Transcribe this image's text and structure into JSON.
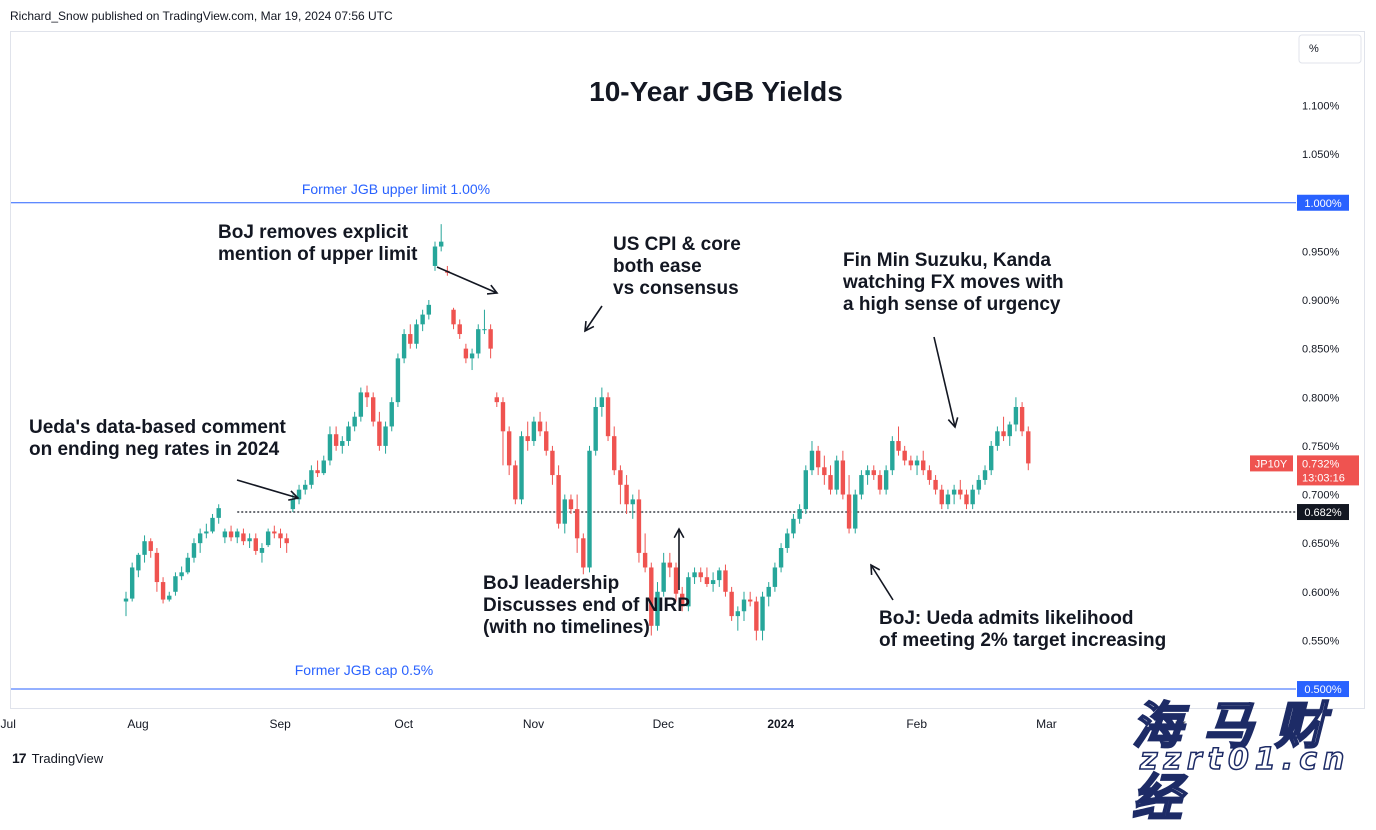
{
  "header": {
    "publisher_line": "Richard_Snow published on TradingView.com, Mar 19, 2024 07:56 UTC"
  },
  "footer": {
    "logo_text": "TradingView",
    "logo_mark": "17"
  },
  "watermark": {
    "cn_text": "海 马 财 经",
    "url_text": "zzrt01.cn"
  },
  "colors": {
    "up": "#26a69a",
    "down": "#ef5350",
    "level_line": "#2962ff",
    "label_blue": "#2962ff",
    "text": "#131722"
  },
  "chart_data": {
    "type": "candlestick",
    "title": "10-Year JGB Yields",
    "symbol": "JP10Y",
    "last_value_label": "0.732%",
    "countdown_label": "13:03:16",
    "current_line_label": "0.682%",
    "y_unit": "%",
    "ylim": [
      0.462,
      1.155
    ],
    "y_ticks": [
      {
        "v": 1.1,
        "label": "1.100%"
      },
      {
        "v": 1.05,
        "label": "1.050%"
      },
      {
        "v": 1.0,
        "label": "1.000%"
      },
      {
        "v": 0.95,
        "label": "0.950%"
      },
      {
        "v": 0.9,
        "label": "0.900%"
      },
      {
        "v": 0.85,
        "label": "0.850%"
      },
      {
        "v": 0.8,
        "label": "0.800%"
      },
      {
        "v": 0.75,
        "label": "0.750%"
      },
      {
        "v": 0.7,
        "label": "0.700%"
      },
      {
        "v": 0.65,
        "label": "0.650%"
      },
      {
        "v": 0.6,
        "label": "0.600%"
      },
      {
        "v": 0.55,
        "label": "0.550%"
      },
      {
        "v": 0.5,
        "label": "0.500%"
      }
    ],
    "x_ticks": [
      {
        "label": "Jul",
        "i": -21
      },
      {
        "label": "Aug",
        "i": 0
      },
      {
        "label": "Sep",
        "i": 23
      },
      {
        "label": "Oct",
        "i": 43
      },
      {
        "label": "Nov",
        "i": 64
      },
      {
        "label": "Dec",
        "i": 85
      },
      {
        "label": "2024",
        "i": 104,
        "bold": true
      },
      {
        "label": "Feb",
        "i": 126
      },
      {
        "label": "Mar",
        "i": 147
      },
      {
        "label": "Apr",
        "i": 168
      }
    ],
    "x_start_date": "2023-07-31",
    "levels": [
      {
        "value": 1.0,
        "label": "Former JGB upper limit 1.00%",
        "axis_label": "1.000%"
      },
      {
        "value": 0.5,
        "label": "Former JGB cap 0.5%",
        "axis_label": "0.500%"
      }
    ],
    "dotted_level": {
      "value": 0.682,
      "from_index": 18
    },
    "candles": [
      [
        0.59,
        0.6,
        0.575,
        0.593
      ],
      [
        0.593,
        0.63,
        0.59,
        0.625
      ],
      [
        0.622,
        0.64,
        0.615,
        0.638
      ],
      [
        0.638,
        0.658,
        0.63,
        0.652
      ],
      [
        0.652,
        0.655,
        0.635,
        0.642
      ],
      [
        0.64,
        0.645,
        0.6,
        0.61
      ],
      [
        0.61,
        0.615,
        0.588,
        0.592
      ],
      [
        0.592,
        0.6,
        0.59,
        0.596
      ],
      [
        0.6,
        0.62,
        0.596,
        0.616
      ],
      [
        0.616,
        0.626,
        0.612,
        0.62
      ],
      [
        0.62,
        0.64,
        0.618,
        0.635
      ],
      [
        0.635,
        0.655,
        0.63,
        0.65
      ],
      [
        0.65,
        0.665,
        0.64,
        0.66
      ],
      [
        0.66,
        0.67,
        0.655,
        0.662
      ],
      [
        0.662,
        0.68,
        0.66,
        0.676
      ],
      [
        0.676,
        0.69,
        0.67,
        0.686
      ],
      [
        0.656,
        0.665,
        0.65,
        0.662
      ],
      [
        0.662,
        0.668,
        0.652,
        0.656
      ],
      [
        0.656,
        0.665,
        0.65,
        0.662
      ],
      [
        0.66,
        0.665,
        0.648,
        0.652
      ],
      [
        0.652,
        0.66,
        0.645,
        0.655
      ],
      [
        0.655,
        0.66,
        0.638,
        0.642
      ],
      [
        0.64,
        0.65,
        0.63,
        0.645
      ],
      [
        0.648,
        0.665,
        0.646,
        0.662
      ],
      [
        0.662,
        0.668,
        0.655,
        0.66
      ],
      [
        0.66,
        0.665,
        0.645,
        0.655
      ],
      [
        0.655,
        0.66,
        0.64,
        0.65
      ],
      [
        0.685,
        0.7,
        0.682,
        0.695
      ],
      [
        0.695,
        0.71,
        0.69,
        0.705
      ],
      [
        0.705,
        0.715,
        0.7,
        0.71
      ],
      [
        0.71,
        0.73,
        0.706,
        0.725
      ],
      [
        0.725,
        0.735,
        0.718,
        0.722
      ],
      [
        0.722,
        0.74,
        0.72,
        0.735
      ],
      [
        0.735,
        0.77,
        0.73,
        0.762
      ],
      [
        0.762,
        0.77,
        0.745,
        0.75
      ],
      [
        0.75,
        0.76,
        0.742,
        0.755
      ],
      [
        0.755,
        0.775,
        0.75,
        0.77
      ],
      [
        0.77,
        0.785,
        0.765,
        0.78
      ],
      [
        0.78,
        0.81,
        0.775,
        0.805
      ],
      [
        0.805,
        0.812,
        0.79,
        0.8
      ],
      [
        0.8,
        0.805,
        0.77,
        0.775
      ],
      [
        0.775,
        0.785,
        0.745,
        0.75
      ],
      [
        0.75,
        0.775,
        0.742,
        0.77
      ],
      [
        0.77,
        0.8,
        0.765,
        0.795
      ],
      [
        0.795,
        0.845,
        0.79,
        0.84
      ],
      [
        0.84,
        0.87,
        0.835,
        0.865
      ],
      [
        0.865,
        0.875,
        0.85,
        0.855
      ],
      [
        0.855,
        0.88,
        0.85,
        0.875
      ],
      [
        0.875,
        0.89,
        0.868,
        0.885
      ],
      [
        0.885,
        0.9,
        0.88,
        0.895
      ],
      [
        0.935,
        0.96,
        0.93,
        0.955
      ],
      [
        0.955,
        0.978,
        0.95,
        0.96
      ],
      [
        0.93,
        0.935,
        0.925,
        0.928
      ],
      [
        0.89,
        0.892,
        0.87,
        0.875
      ],
      [
        0.875,
        0.88,
        0.86,
        0.865
      ],
      [
        0.85,
        0.855,
        0.835,
        0.84
      ],
      [
        0.84,
        0.85,
        0.828,
        0.845
      ],
      [
        0.845,
        0.875,
        0.84,
        0.87
      ],
      [
        0.87,
        0.89,
        0.865,
        0.87
      ],
      [
        0.87,
        0.875,
        0.84,
        0.85
      ],
      [
        0.8,
        0.805,
        0.79,
        0.795
      ],
      [
        0.795,
        0.8,
        0.73,
        0.765
      ],
      [
        0.765,
        0.77,
        0.72,
        0.73
      ],
      [
        0.73,
        0.735,
        0.69,
        0.695
      ],
      [
        0.695,
        0.765,
        0.69,
        0.76
      ],
      [
        0.76,
        0.775,
        0.745,
        0.755
      ],
      [
        0.755,
        0.78,
        0.75,
        0.775
      ],
      [
        0.775,
        0.785,
        0.76,
        0.765
      ],
      [
        0.765,
        0.775,
        0.74,
        0.745
      ],
      [
        0.745,
        0.75,
        0.71,
        0.72
      ],
      [
        0.72,
        0.73,
        0.665,
        0.67
      ],
      [
        0.67,
        0.7,
        0.66,
        0.695
      ],
      [
        0.695,
        0.7,
        0.68,
        0.685
      ],
      [
        0.685,
        0.7,
        0.64,
        0.655
      ],
      [
        0.655,
        0.66,
        0.618,
        0.625
      ],
      [
        0.625,
        0.75,
        0.62,
        0.745
      ],
      [
        0.745,
        0.8,
        0.74,
        0.79
      ],
      [
        0.79,
        0.81,
        0.78,
        0.8
      ],
      [
        0.8,
        0.805,
        0.755,
        0.76
      ],
      [
        0.76,
        0.77,
        0.72,
        0.725
      ],
      [
        0.725,
        0.73,
        0.69,
        0.71
      ],
      [
        0.71,
        0.72,
        0.68,
        0.69
      ],
      [
        0.69,
        0.7,
        0.675,
        0.695
      ],
      [
        0.695,
        0.705,
        0.63,
        0.64
      ],
      [
        0.64,
        0.66,
        0.62,
        0.625
      ],
      [
        0.625,
        0.63,
        0.555,
        0.565
      ],
      [
        0.565,
        0.61,
        0.56,
        0.6
      ],
      [
        0.6,
        0.64,
        0.595,
        0.63
      ],
      [
        0.63,
        0.64,
        0.615,
        0.625
      ],
      [
        0.625,
        0.63,
        0.59,
        0.598
      ],
      [
        0.598,
        0.605,
        0.58,
        0.585
      ],
      [
        0.585,
        0.62,
        0.58,
        0.615
      ],
      [
        0.615,
        0.625,
        0.608,
        0.62
      ],
      [
        0.62,
        0.625,
        0.61,
        0.615
      ],
      [
        0.615,
        0.625,
        0.605,
        0.608
      ],
      [
        0.608,
        0.62,
        0.6,
        0.612
      ],
      [
        0.612,
        0.625,
        0.605,
        0.622
      ],
      [
        0.622,
        0.628,
        0.595,
        0.6
      ],
      [
        0.6,
        0.605,
        0.57,
        0.575
      ],
      [
        0.575,
        0.585,
        0.56,
        0.58
      ],
      [
        0.58,
        0.6,
        0.57,
        0.592
      ],
      [
        0.592,
        0.6,
        0.585,
        0.59
      ],
      [
        0.59,
        0.595,
        0.55,
        0.56
      ],
      [
        0.56,
        0.6,
        0.55,
        0.595
      ],
      [
        0.595,
        0.61,
        0.585,
        0.605
      ],
      [
        0.605,
        0.63,
        0.6,
        0.625
      ],
      [
        0.625,
        0.65,
        0.62,
        0.645
      ],
      [
        0.645,
        0.665,
        0.64,
        0.66
      ],
      [
        0.66,
        0.68,
        0.655,
        0.675
      ],
      [
        0.675,
        0.69,
        0.67,
        0.685
      ],
      [
        0.685,
        0.73,
        0.68,
        0.725
      ],
      [
        0.725,
        0.755,
        0.72,
        0.745
      ],
      [
        0.745,
        0.75,
        0.72,
        0.728
      ],
      [
        0.728,
        0.74,
        0.71,
        0.72
      ],
      [
        0.72,
        0.73,
        0.7,
        0.705
      ],
      [
        0.705,
        0.74,
        0.7,
        0.735
      ],
      [
        0.735,
        0.745,
        0.695,
        0.7
      ],
      [
        0.7,
        0.72,
        0.66,
        0.665
      ],
      [
        0.665,
        0.705,
        0.66,
        0.7
      ],
      [
        0.7,
        0.725,
        0.695,
        0.72
      ],
      [
        0.72,
        0.73,
        0.71,
        0.725
      ],
      [
        0.725,
        0.73,
        0.715,
        0.72
      ],
      [
        0.72,
        0.725,
        0.7,
        0.705
      ],
      [
        0.705,
        0.73,
        0.7,
        0.725
      ],
      [
        0.725,
        0.76,
        0.72,
        0.755
      ],
      [
        0.755,
        0.77,
        0.74,
        0.745
      ],
      [
        0.745,
        0.75,
        0.73,
        0.735
      ],
      [
        0.735,
        0.74,
        0.725,
        0.73
      ],
      [
        0.73,
        0.74,
        0.72,
        0.735
      ],
      [
        0.735,
        0.745,
        0.72,
        0.725
      ],
      [
        0.725,
        0.73,
        0.71,
        0.715
      ],
      [
        0.715,
        0.72,
        0.7,
        0.705
      ],
      [
        0.705,
        0.71,
        0.685,
        0.69
      ],
      [
        0.69,
        0.705,
        0.685,
        0.7
      ],
      [
        0.7,
        0.71,
        0.69,
        0.705
      ],
      [
        0.705,
        0.715,
        0.695,
        0.7
      ],
      [
        0.7,
        0.705,
        0.685,
        0.69
      ],
      [
        0.69,
        0.71,
        0.685,
        0.705
      ],
      [
        0.705,
        0.72,
        0.7,
        0.715
      ],
      [
        0.715,
        0.73,
        0.71,
        0.725
      ],
      [
        0.725,
        0.755,
        0.72,
        0.75
      ],
      [
        0.75,
        0.77,
        0.745,
        0.765
      ],
      [
        0.765,
        0.78,
        0.755,
        0.76
      ],
      [
        0.76,
        0.775,
        0.75,
        0.772
      ],
      [
        0.772,
        0.8,
        0.765,
        0.79
      ],
      [
        0.79,
        0.795,
        0.76,
        0.765
      ],
      [
        0.765,
        0.77,
        0.725,
        0.732
      ]
    ],
    "annotations": [
      {
        "lines": [
          "10-Year JGB Yields"
        ],
        "role": "title"
      },
      {
        "lines": [
          "BoJ removes explicit",
          "mention of upper limit"
        ]
      },
      {
        "lines": [
          "US CPI & core",
          "both ease",
          "vs consensus"
        ]
      },
      {
        "lines": [
          "Fin Min Suzuku, Kanda",
          "watching FX moves with",
          "a high sense of urgency"
        ]
      },
      {
        "lines": [
          "Ueda's data-based comment",
          "on ending neg rates in 2024"
        ]
      },
      {
        "lines": [
          "BoJ leadership",
          "Discusses end of NIRP",
          "(with no timelines)"
        ]
      },
      {
        "lines": [
          "BoJ: Ueda admits likelihood",
          "of meeting 2% target increasing"
        ]
      }
    ]
  }
}
